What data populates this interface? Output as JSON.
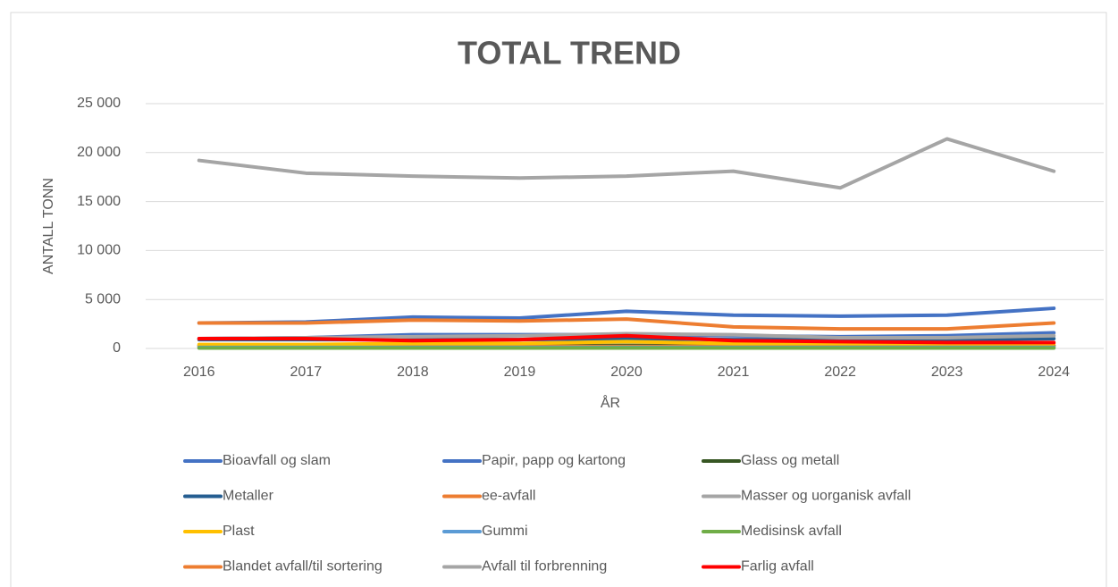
{
  "chart_data": {
    "type": "line",
    "title": "TOTAL TREND",
    "x_label": "ÅR",
    "y_label": "ANTALL TONN",
    "categories": [
      "2016",
      "2017",
      "2018",
      "2019",
      "2020",
      "2021",
      "2022",
      "2023",
      "2024"
    ],
    "ylim": [
      0,
      25000
    ],
    "yticks": [
      0,
      {
        "value": 5000,
        "label": "5 000"
      },
      {
        "value": 10000,
        "label": "10 000"
      },
      {
        "value": 15000,
        "label": "15 000"
      },
      {
        "value": 20000,
        "label": "20 000"
      },
      {
        "value": 25000,
        "label": "25 000"
      }
    ],
    "grid": true,
    "legend": "bottom",
    "series": [
      {
        "name": "Bioavfall og slam",
        "color": "#4472c4",
        "values": [
          1000,
          1100,
          1400,
          1400,
          1400,
          1300,
          1200,
          1300,
          1600
        ]
      },
      {
        "name": "Papir, papp og kartong",
        "color": "#4472c4",
        "values": [
          2600,
          2700,
          3200,
          3100,
          3800,
          3400,
          3300,
          3400,
          4100
        ]
      },
      {
        "name": "Glass og metall",
        "color": "#375623",
        "values": [
          300,
          300,
          300,
          300,
          300,
          300,
          300,
          300,
          300
        ]
      },
      {
        "name": "Metaller",
        "color": "#255e91",
        "values": [
          900,
          900,
          900,
          900,
          1000,
          900,
          900,
          900,
          1000
        ]
      },
      {
        "name": "ee-avfall",
        "color": "#ed7d31",
        "values": [
          200,
          200,
          200,
          200,
          200,
          200,
          200,
          200,
          200
        ]
      },
      {
        "name": "Masser og uorganisk avfall",
        "color": "#a5a5a5",
        "values": [
          19200,
          17900,
          17600,
          17400,
          17600,
          18100,
          16400,
          21400,
          18100
        ]
      },
      {
        "name": "Plast",
        "color": "#ffc000",
        "values": [
          400,
          400,
          500,
          500,
          700,
          500,
          500,
          500,
          500
        ]
      },
      {
        "name": "Gummi",
        "color": "#5b9bd5",
        "values": [
          100,
          100,
          100,
          100,
          100,
          100,
          100,
          100,
          100
        ]
      },
      {
        "name": "Medisinsk avfall",
        "color": "#70ad47",
        "values": [
          50,
          50,
          50,
          50,
          50,
          50,
          50,
          50,
          50
        ]
      },
      {
        "name": "Blandet avfall/til sortering",
        "color": "#ed7d31",
        "values": [
          2600,
          2600,
          2900,
          2800,
          3000,
          2200,
          2000,
          2000,
          2600
        ]
      },
      {
        "name": "Avfall til forbrenning",
        "color": "#a5a5a5",
        "values": [
          1000,
          1100,
          1200,
          1300,
          1500,
          1400,
          1100,
          1100,
          1300
        ]
      },
      {
        "name": "Farlig avfall",
        "color": "#ff0000",
        "values": [
          1000,
          1000,
          800,
          900,
          1300,
          800,
          700,
          600,
          600
        ]
      }
    ]
  }
}
